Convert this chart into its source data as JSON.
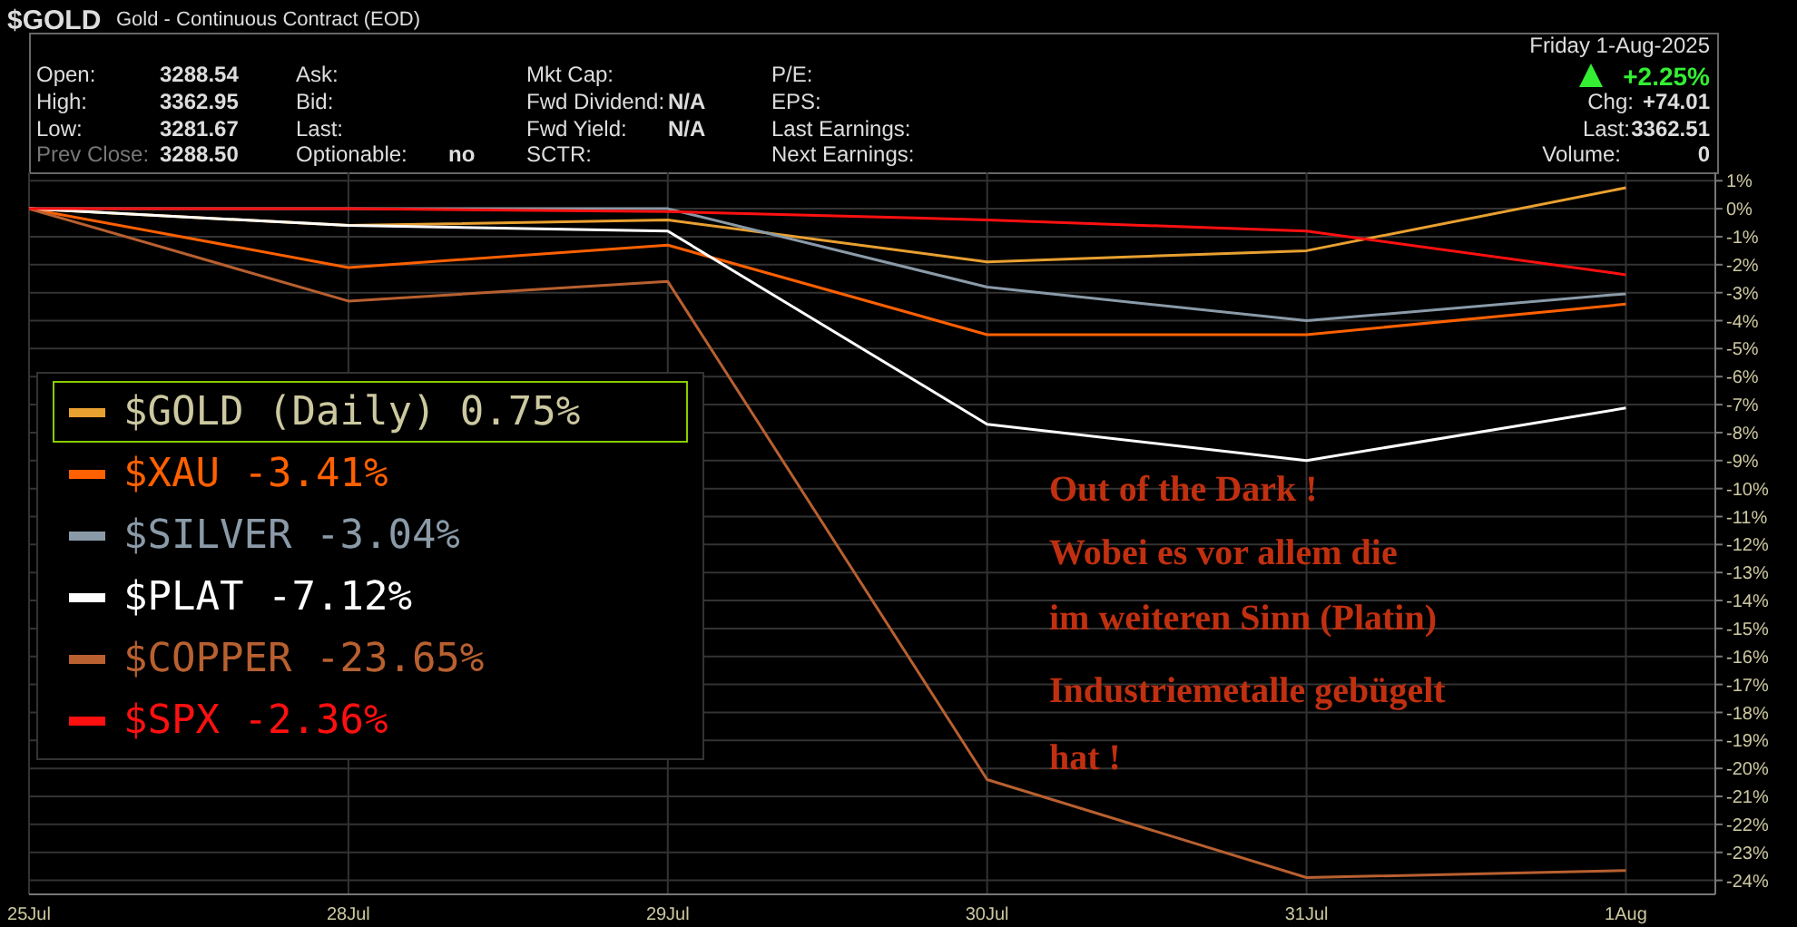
{
  "chart_data": {
    "type": "line",
    "title": "$GOLD",
    "subtitle": "Gold - Continuous Contract (EOD)",
    "categories": [
      "25Jul",
      "28Jul",
      "29Jul",
      "30Jul",
      "31Jul",
      "1Aug"
    ],
    "series": [
      {
        "name": "$GOLD (Daily) 0.75%",
        "color": "#e8a030",
        "values": [
          0,
          -0.6,
          -0.4,
          -1.9,
          -1.5,
          0.75
        ]
      },
      {
        "name": "$XAU -3.41%",
        "color": "#ff6000",
        "values": [
          0,
          -2.1,
          -1.3,
          -4.5,
          -4.5,
          -3.41
        ]
      },
      {
        "name": "$SILVER -3.04%",
        "color": "#8a9aa8",
        "values": [
          0,
          0,
          0,
          -2.8,
          -4.0,
          -3.04
        ]
      },
      {
        "name": "$PLAT -7.12%",
        "color": "#ffffff",
        "values": [
          0,
          -0.6,
          -0.8,
          -7.7,
          -9.0,
          -7.12
        ]
      },
      {
        "name": "$COPPER -23.65%",
        "color": "#b86030",
        "values": [
          0,
          -3.3,
          -2.6,
          -20.4,
          -23.9,
          -23.65
        ]
      },
      {
        "name": "$SPX -2.36%",
        "color": "#ff1010",
        "values": [
          0,
          0,
          -0.1,
          -0.4,
          -0.8,
          -2.36
        ]
      }
    ],
    "ylim": [
      -24.5,
      1.3
    ],
    "yticks": [
      {
        "value": 1,
        "label": "1%"
      },
      {
        "value": 0,
        "label": "0%"
      },
      {
        "value": -1,
        "label": "-1%"
      },
      {
        "value": -2,
        "label": "-2%"
      },
      {
        "value": -3,
        "label": "-3%"
      },
      {
        "value": -4,
        "label": "-4%"
      },
      {
        "value": -5,
        "label": "-5%"
      },
      {
        "value": -6,
        "label": "-6%"
      },
      {
        "value": -7,
        "label": "-7%"
      },
      {
        "value": -8,
        "label": "-8%"
      },
      {
        "value": -9,
        "label": "-9%"
      },
      {
        "value": -10,
        "label": "-10%"
      },
      {
        "value": -11,
        "label": "-11%"
      },
      {
        "value": -12,
        "label": "-12%"
      },
      {
        "value": -13,
        "label": "-13%"
      },
      {
        "value": -14,
        "label": "-14%"
      },
      {
        "value": -15,
        "label": "-15%"
      },
      {
        "value": -16,
        "label": "-16%"
      },
      {
        "value": -17,
        "label": "-17%"
      },
      {
        "value": -18,
        "label": "-18%"
      },
      {
        "value": -19,
        "label": "-19%"
      },
      {
        "value": -20,
        "label": "-20%"
      },
      {
        "value": -21,
        "label": "-21%"
      },
      {
        "value": -22,
        "label": "-22%"
      },
      {
        "value": -23,
        "label": "-23%"
      },
      {
        "value": -24,
        "label": "-24%"
      }
    ],
    "grid": true,
    "legend": "left",
    "marker": "none",
    "line_style": "solid",
    "annotations": [
      "Open:",
      "3288.54",
      "High:",
      "3362.95",
      "Low:",
      "3281.67",
      "Prev Close:",
      "3288.50",
      "Ask:",
      "Bid:",
      "Last:",
      "Optionable:",
      "no",
      "Mkt Cap:",
      "Fwd Dividend:",
      "N/A",
      "Fwd Yield:",
      "N/A",
      "SCTR:",
      "P/E:",
      "EPS:",
      "Last Earnings:",
      "Next Earnings:",
      "Friday 1-Aug-2025",
      "+2.25%",
      "Chg:",
      "+74.01",
      "Last:",
      "3362.51",
      "Volume:",
      "0",
      "Out of the Dark !",
      "Wobei es vor allem die",
      "im weiteren Sinn (Platin)",
      "Industriemetalle gebügelt",
      "hat !"
    ]
  }
}
